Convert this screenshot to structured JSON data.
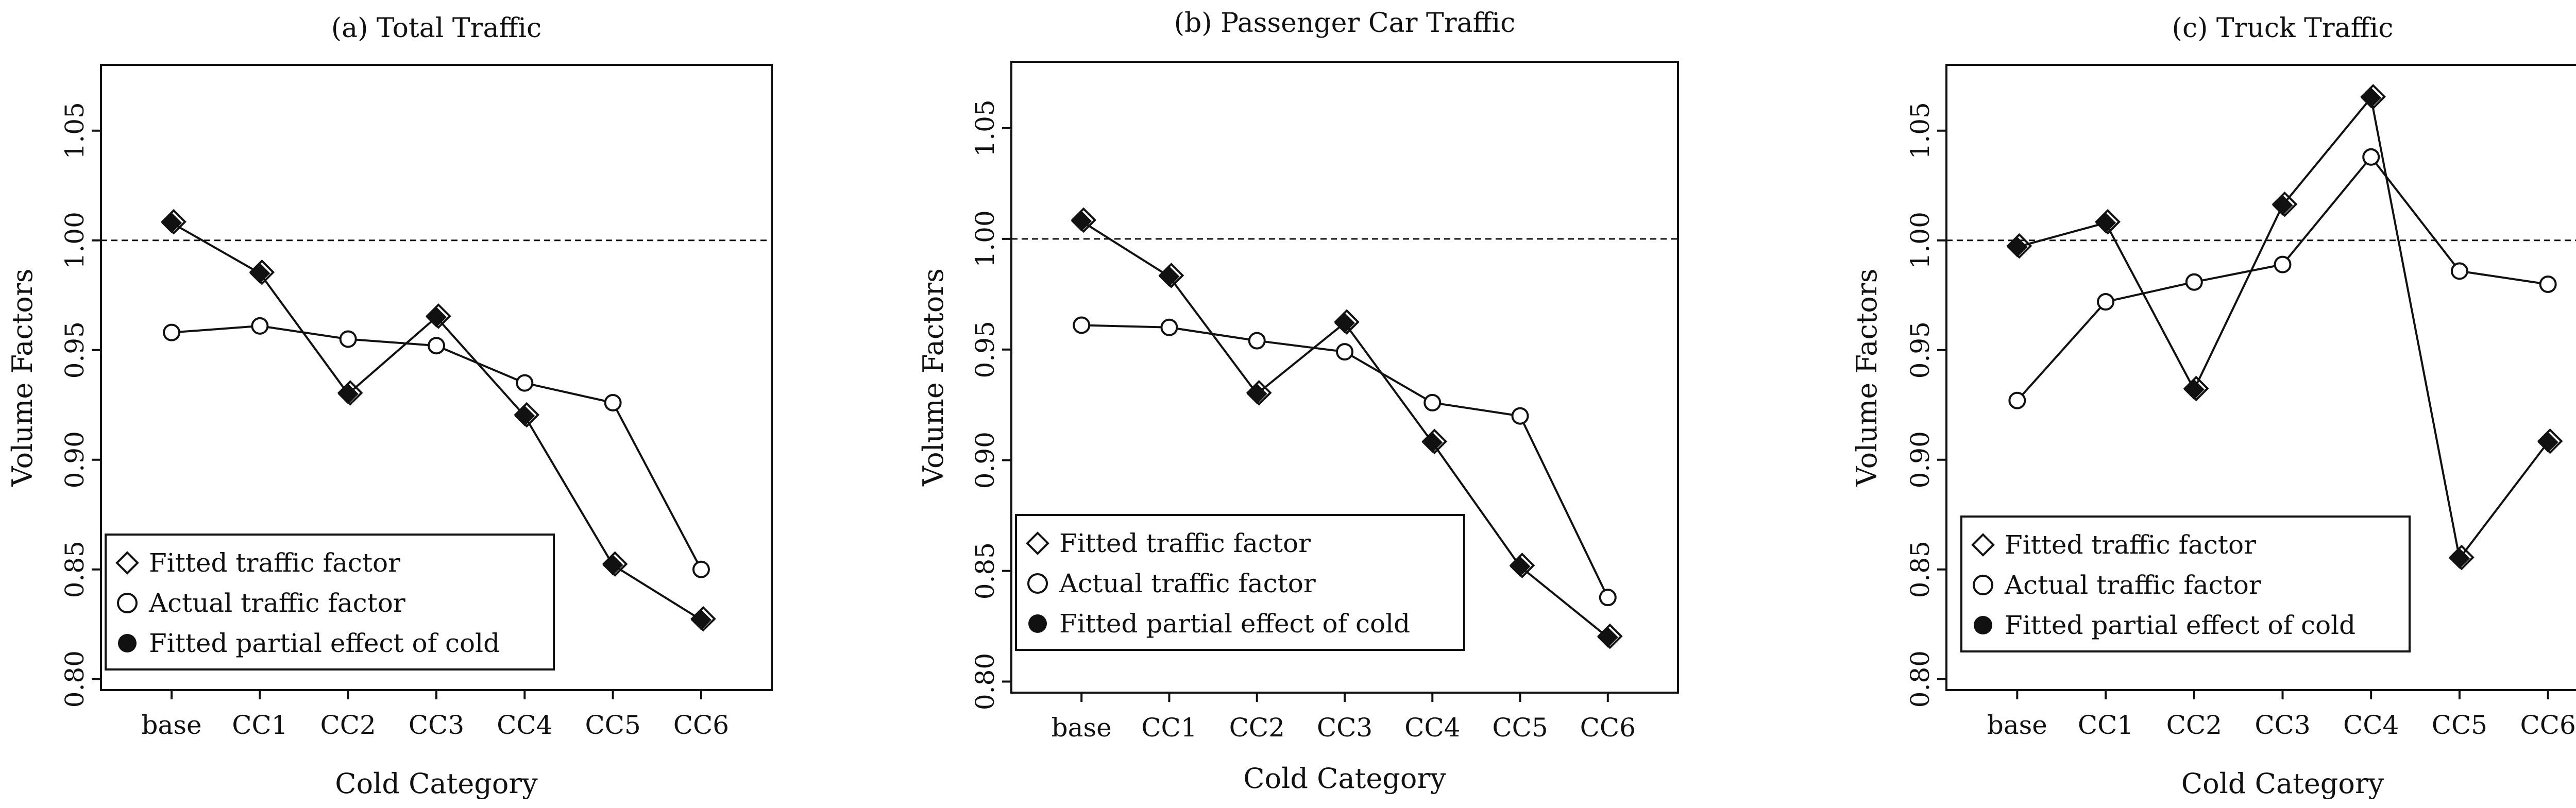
{
  "figure": {
    "reference_line_value": 1.0
  },
  "legend": {
    "fitted_label": "Fitted traffic factor",
    "actual_label": "Actual traffic factor",
    "partial_label": "Fitted partial effect of cold"
  },
  "chart_data": [
    {
      "type": "line",
      "title": "(a) Total Traffic",
      "xlabel": "Cold Category",
      "ylabel": "Volume Factors",
      "categories": [
        "base",
        "CC1",
        "CC2",
        "CC3",
        "CC4",
        "CC5",
        "CC6"
      ],
      "ylim": [
        0.795,
        1.08
      ],
      "yticks": [
        "0.80",
        "0.85",
        "0.90",
        "0.95",
        "1.00",
        "1.05"
      ],
      "reference_line": 1.0,
      "legend_position": "bottom-left",
      "series": [
        {
          "name": "Fitted traffic factor",
          "marker": "diamond-open",
          "values": [
            1.008,
            0.985,
            0.93,
            0.965,
            0.92,
            0.852,
            0.827
          ]
        },
        {
          "name": "Actual traffic factor",
          "marker": "circle-open",
          "values": [
            0.958,
            0.961,
            0.955,
            0.952,
            0.935,
            0.926,
            0.85
          ]
        },
        {
          "name": "Fitted partial effect of cold",
          "marker": "diamond-filled",
          "values": [
            1.008,
            0.985,
            0.93,
            0.965,
            0.92,
            0.852,
            0.827
          ]
        }
      ]
    },
    {
      "type": "line",
      "title": "(b) Passenger Car Traffic",
      "xlabel": "Cold Category",
      "ylabel": "Volume Factors",
      "categories": [
        "base",
        "CC1",
        "CC2",
        "CC3",
        "CC4",
        "CC5",
        "CC6"
      ],
      "ylim": [
        0.795,
        1.08
      ],
      "yticks": [
        "0.80",
        "0.85",
        "0.90",
        "0.95",
        "1.00",
        "1.05"
      ],
      "reference_line": 1.0,
      "legend_position": "bottom-left",
      "series": [
        {
          "name": "Fitted traffic factor",
          "marker": "diamond-open",
          "values": [
            1.008,
            0.983,
            0.93,
            0.962,
            0.908,
            0.852,
            0.82
          ]
        },
        {
          "name": "Actual traffic factor",
          "marker": "circle-open",
          "values": [
            0.961,
            0.96,
            0.954,
            0.949,
            0.926,
            0.92,
            0.838
          ]
        },
        {
          "name": "Fitted partial effect of cold",
          "marker": "diamond-filled",
          "values": [
            1.008,
            0.983,
            0.93,
            0.962,
            0.908,
            0.852,
            0.82
          ]
        }
      ]
    },
    {
      "type": "line",
      "title": "(c) Truck Traffic",
      "xlabel": "Cold Category",
      "ylabel": "Volume Factors",
      "categories": [
        "base",
        "CC1",
        "CC2",
        "CC3",
        "CC4",
        "CC5",
        "CC6"
      ],
      "ylim": [
        0.795,
        1.08
      ],
      "yticks": [
        "0.80",
        "0.85",
        "0.90",
        "0.95",
        "1.00",
        "1.05"
      ],
      "reference_line": 1.0,
      "legend_position": "bottom-left",
      "series": [
        {
          "name": "Fitted traffic factor",
          "marker": "diamond-open",
          "values": [
            0.997,
            1.008,
            0.932,
            1.016,
            1.065,
            0.855,
            0.908
          ]
        },
        {
          "name": "Actual traffic factor",
          "marker": "circle-open",
          "values": [
            0.927,
            0.972,
            0.981,
            0.989,
            1.038,
            0.986,
            0.98
          ]
        },
        {
          "name": "Fitted partial effect of cold",
          "marker": "diamond-filled",
          "values": [
            0.997,
            1.008,
            0.932,
            1.016,
            1.065,
            0.855,
            0.908
          ]
        }
      ]
    }
  ]
}
